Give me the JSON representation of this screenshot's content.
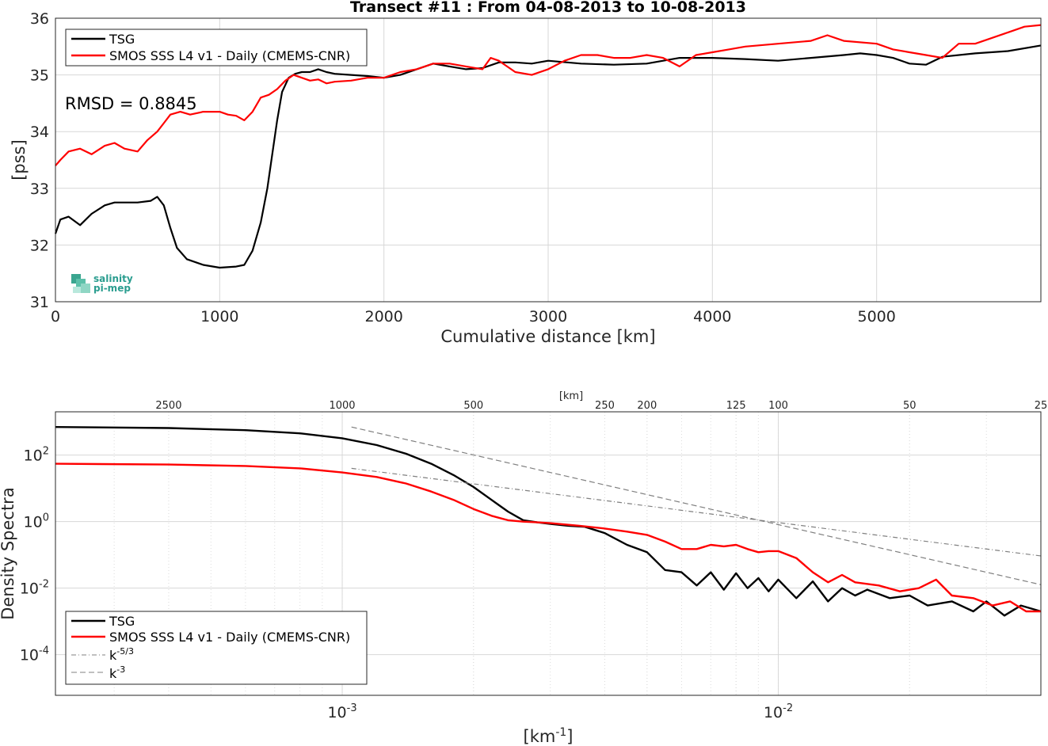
{
  "chart_data": [
    {
      "type": "line",
      "title": "Transect #11 : From 04-08-2013 to 10-08-2013",
      "xlabel": "Cumulative distance [km]",
      "ylabel": "[pss]",
      "xlim": [
        0,
        6000
      ],
      "ylim": [
        31,
        36
      ],
      "x_ticks": [
        0,
        1000,
        2000,
        3000,
        4000,
        5000
      ],
      "y_ticks": [
        31,
        32,
        33,
        34,
        35,
        36
      ],
      "grid": true,
      "legend_position": "top-left",
      "annotation": "RMSD = 0.8845",
      "logo_text": [
        "salinity",
        "pi-mep"
      ],
      "series": [
        {
          "name": "TSG",
          "color": "#000000",
          "x": [
            0,
            30,
            80,
            150,
            220,
            300,
            360,
            420,
            500,
            580,
            620,
            660,
            700,
            740,
            800,
            900,
            1000,
            1100,
            1150,
            1200,
            1250,
            1290,
            1320,
            1350,
            1380,
            1420,
            1460,
            1500,
            1550,
            1600,
            1650,
            1700,
            1800,
            1900,
            2000,
            2100,
            2200,
            2300,
            2400,
            2500,
            2600,
            2700,
            2800,
            2900,
            3000,
            3200,
            3400,
            3600,
            3800,
            4000,
            4200,
            4400,
            4600,
            4800,
            4900,
            5000,
            5100,
            5200,
            5300,
            5400,
            5600,
            5800,
            6000
          ],
          "values": [
            32.2,
            32.45,
            32.5,
            32.35,
            32.55,
            32.7,
            32.75,
            32.75,
            32.75,
            32.78,
            32.85,
            32.7,
            32.3,
            31.95,
            31.75,
            31.65,
            31.6,
            31.62,
            31.65,
            31.9,
            32.4,
            33.0,
            33.6,
            34.2,
            34.7,
            34.95,
            35.02,
            35.05,
            35.05,
            35.1,
            35.05,
            35.02,
            35.0,
            34.98,
            34.95,
            35.0,
            35.1,
            35.2,
            35.15,
            35.1,
            35.12,
            35.22,
            35.22,
            35.2,
            35.25,
            35.2,
            35.18,
            35.2,
            35.3,
            35.3,
            35.28,
            35.25,
            35.3,
            35.35,
            35.38,
            35.35,
            35.3,
            35.2,
            35.18,
            35.32,
            35.38,
            35.42,
            35.52
          ]
        },
        {
          "name": "SMOS SSS L4 v1 - Daily (CMEMS-CNR)",
          "color": "#ff0000",
          "x": [
            0,
            30,
            80,
            150,
            220,
            300,
            360,
            420,
            500,
            560,
            620,
            660,
            700,
            760,
            820,
            900,
            1000,
            1050,
            1100,
            1150,
            1200,
            1250,
            1300,
            1350,
            1400,
            1450,
            1500,
            1550,
            1600,
            1650,
            1700,
            1800,
            1900,
            2000,
            2100,
            2200,
            2300,
            2400,
            2500,
            2600,
            2650,
            2700,
            2800,
            2900,
            3000,
            3100,
            3200,
            3300,
            3400,
            3500,
            3600,
            3700,
            3800,
            3900,
            4000,
            4100,
            4200,
            4400,
            4600,
            4700,
            4800,
            5000,
            5100,
            5200,
            5300,
            5400,
            5500,
            5600,
            5700,
            5800,
            5900,
            6000
          ],
          "values": [
            33.4,
            33.5,
            33.65,
            33.7,
            33.6,
            33.75,
            33.8,
            33.7,
            33.65,
            33.85,
            34.0,
            34.15,
            34.3,
            34.35,
            34.3,
            34.35,
            34.35,
            34.3,
            34.28,
            34.2,
            34.35,
            34.6,
            34.65,
            34.75,
            34.9,
            35.0,
            34.95,
            34.9,
            34.92,
            34.85,
            34.88,
            34.9,
            34.95,
            34.95,
            35.05,
            35.1,
            35.2,
            35.2,
            35.15,
            35.1,
            35.3,
            35.25,
            35.05,
            35.0,
            35.1,
            35.25,
            35.35,
            35.35,
            35.3,
            35.3,
            35.35,
            35.3,
            35.15,
            35.35,
            35.4,
            35.45,
            35.5,
            35.55,
            35.6,
            35.7,
            35.6,
            35.55,
            35.45,
            35.4,
            35.35,
            35.3,
            35.55,
            35.55,
            35.65,
            35.75,
            35.85,
            35.88
          ]
        }
      ]
    },
    {
      "type": "line",
      "xlabel": "[km^-1]",
      "ylabel": "Density Spectra",
      "top_axis_label": "[km]",
      "x_scale": "log",
      "y_scale": "log",
      "xlim": [
        0.00022,
        0.04
      ],
      "ylim": [
        6e-06,
        2000
      ],
      "x_tick_labels": [
        "10^-3",
        "10^-2"
      ],
      "y_tick_labels": [
        "10^2",
        "10^0",
        "10^-2",
        "10^-4"
      ],
      "top_ticks": [
        2500,
        1000,
        500,
        250,
        200,
        125,
        100,
        50,
        25
      ],
      "grid": true,
      "legend_position": "bottom-left",
      "series": [
        {
          "name": "TSG",
          "color": "#000000",
          "x": [
            0.00022,
            0.0004,
            0.0006,
            0.0008,
            0.001,
            0.0012,
            0.0014,
            0.0016,
            0.0018,
            0.002,
            0.0022,
            0.0024,
            0.0026,
            0.0028,
            0.003,
            0.0033,
            0.0036,
            0.004,
            0.0045,
            0.005,
            0.0055,
            0.006,
            0.0065,
            0.007,
            0.0075,
            0.008,
            0.0085,
            0.009,
            0.0095,
            0.01,
            0.011,
            0.012,
            0.013,
            0.014,
            0.015,
            0.016,
            0.018,
            0.02,
            0.022,
            0.025,
            0.028,
            0.03,
            0.033,
            0.036,
            0.04
          ],
          "values": [
            700,
            650,
            560,
            450,
            320,
            200,
            110,
            55,
            25,
            11,
            4.5,
            2.0,
            1.1,
            0.95,
            0.85,
            0.75,
            0.7,
            0.45,
            0.2,
            0.12,
            0.035,
            0.03,
            0.012,
            0.03,
            0.009,
            0.028,
            0.01,
            0.02,
            0.008,
            0.018,
            0.005,
            0.016,
            0.004,
            0.01,
            0.006,
            0.009,
            0.005,
            0.006,
            0.003,
            0.004,
            0.002,
            0.004,
            0.0015,
            0.003,
            0.002
          ]
        },
        {
          "name": "SMOS SSS L4 v1 - Daily (CMEMS-CNR)",
          "color": "#ff0000",
          "x": [
            0.00022,
            0.0004,
            0.0006,
            0.0008,
            0.001,
            0.0012,
            0.0014,
            0.0016,
            0.0018,
            0.002,
            0.0022,
            0.0024,
            0.0026,
            0.0028,
            0.003,
            0.0035,
            0.004,
            0.0045,
            0.005,
            0.0055,
            0.006,
            0.0065,
            0.007,
            0.0075,
            0.008,
            0.0085,
            0.009,
            0.0095,
            0.01,
            0.011,
            0.012,
            0.013,
            0.014,
            0.015,
            0.017,
            0.019,
            0.021,
            0.023,
            0.025,
            0.028,
            0.031,
            0.034,
            0.037,
            0.04
          ],
          "values": [
            55,
            52,
            47,
            40,
            30,
            22,
            14,
            8.0,
            4.5,
            2.4,
            1.5,
            1.1,
            1.0,
            0.95,
            0.9,
            0.75,
            0.62,
            0.5,
            0.4,
            0.25,
            0.15,
            0.15,
            0.2,
            0.18,
            0.2,
            0.15,
            0.12,
            0.13,
            0.13,
            0.08,
            0.03,
            0.015,
            0.025,
            0.015,
            0.012,
            0.008,
            0.01,
            0.018,
            0.006,
            0.005,
            0.003,
            0.004,
            0.002,
            0.002
          ]
        },
        {
          "name": "k^-5/3",
          "color": "#808080",
          "style": "dash-dot",
          "x": [
            0.00105,
            0.04
          ],
          "values": [
            40.0,
            0.093
          ]
        },
        {
          "name": "k^-3",
          "color": "#808080",
          "style": "dashed",
          "x": [
            0.00105,
            0.04
          ],
          "values": [
            700,
            0.0127
          ]
        }
      ]
    }
  ]
}
